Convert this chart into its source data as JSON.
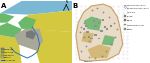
{
  "fig_width": 1.5,
  "fig_height": 0.62,
  "dpi": 100,
  "panel_A": {
    "label": "A",
    "bg_color": "#7ec87e",
    "land_colors": {
      "water": "#7ab8d4",
      "urban_light": "#d4d4a0",
      "urban_dark": "#a8a890",
      "forest": "#5a9e5a",
      "agriculture": "#d4c840",
      "bare": "#c8b878"
    },
    "legend_items": [
      {
        "label": "Dense area",
        "color": "#888878"
      },
      {
        "label": "Forest area",
        "color": "#5a9e5a"
      },
      {
        "label": "Low density",
        "color": "#d4c840"
      },
      {
        "label": "Farmland",
        "color": "#c8c870"
      },
      {
        "label": "Blue line area",
        "color": "#4a90c8"
      }
    ]
  },
  "panel_B": {
    "label": "B",
    "bg_color": "#f0ece0",
    "campus_outline_color": "#c8a878",
    "legend_items": [
      {
        "label": "Baiting sites on roads / in grid",
        "color": "#888888",
        "marker": "o"
      },
      {
        "label": "100 m grid",
        "color": "#aaaaaa",
        "marker": "none"
      },
      {
        "label": "Buildings",
        "color": "#999999"
      },
      {
        "label": "Farming",
        "color": "#888844"
      },
      {
        "label": "Campus boundary 2001",
        "color": "#d4a868"
      },
      {
        "label": "Wooded",
        "color": "#5a9e5a"
      }
    ]
  },
  "border_color": "#000000",
  "background": "#ffffff"
}
